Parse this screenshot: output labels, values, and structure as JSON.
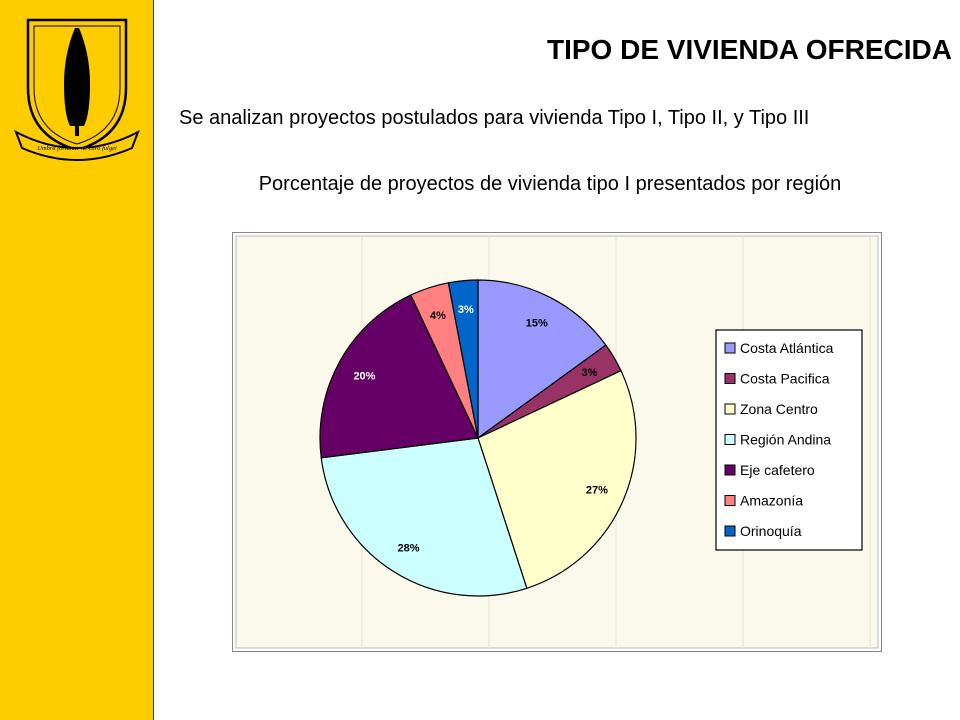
{
  "slide": {
    "title": "TIPO DE VIVIENDA OFRECIDA",
    "intro": "Se analizan proyectos postulados para vivienda Tipo I, Tipo II, y Tipo III",
    "logo_motto": "Umbra fortunae ne caro fulget"
  },
  "colors": {
    "sidebar": "#ffcc00",
    "plot_area": "#fbf8ec"
  },
  "chart_data": {
    "type": "pie",
    "title": "Porcentaje de proyectos de vivienda tipo I presentados por región",
    "legend_position": "right",
    "start_angle_deg": 0,
    "direction": "clockwise",
    "slices": [
      {
        "label": "Costa Atlántica",
        "value": 15,
        "display": "15%",
        "color": "#9999ff"
      },
      {
        "label": "Costa Pacifica",
        "value": 3,
        "display": "3%",
        "color": "#993366"
      },
      {
        "label": "Zona Centro",
        "value": 27,
        "display": "27%",
        "color": "#ffffcc"
      },
      {
        "label": "Región Andina",
        "value": 28,
        "display": "28%",
        "color": "#ccffff"
      },
      {
        "label": "Eje cafetero",
        "value": 20,
        "display": "20%",
        "color": "#660066"
      },
      {
        "label": "Amazonía",
        "value": 4,
        "display": "4%",
        "color": "#ff8080"
      },
      {
        "label": "Orinoquía",
        "value": 3,
        "display": "3%",
        "color": "#0066cc"
      }
    ]
  }
}
